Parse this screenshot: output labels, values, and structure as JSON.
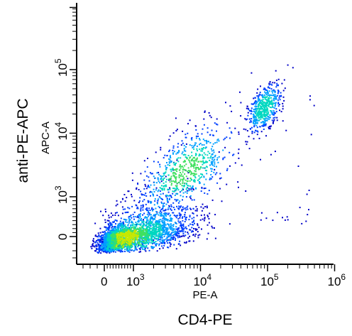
{
  "chart_data": {
    "type": "scatter",
    "style": "flow-cytometry density dot plot",
    "xlabel": "PE-A",
    "ylabel": "APC-A",
    "outer_xlabel": "CD4-PE",
    "outer_ylabel": "anti-PE-APC",
    "x_scale": "biexponential",
    "y_scale": "biexponential",
    "xlim": [
      -300,
      1000000
    ],
    "ylim": [
      -300,
      1000000
    ],
    "x_ticks": [
      {
        "value": 0,
        "base": "0",
        "exp": ""
      },
      {
        "value": 1000,
        "base": "10",
        "exp": "3"
      },
      {
        "value": 10000,
        "base": "10",
        "exp": "4"
      },
      {
        "value": 100000,
        "base": "10",
        "exp": "5"
      },
      {
        "value": 1000000,
        "base": "10",
        "exp": "6"
      }
    ],
    "y_ticks": [
      {
        "value": 0,
        "base": "0",
        "exp": ""
      },
      {
        "value": 1000,
        "base": "10",
        "exp": "3"
      },
      {
        "value": 10000,
        "base": "10",
        "exp": "4"
      },
      {
        "value": 100000,
        "base": "10",
        "exp": "5"
      }
    ],
    "populations": [
      {
        "name": "",
        "center_x": 900,
        "center_y": 150,
        "spread_x_decades": 0.45,
        "spread_y_decades": 0.45,
        "fraction": 0.72
      },
      {
        "name": "",
        "center_x": 6000,
        "center_y": 2500,
        "spread_x_decades": 0.35,
        "spread_y_decades": 0.35,
        "fraction": 0.16
      },
      {
        "name": "",
        "center_x": 90000,
        "center_y": 25000,
        "spread_x_decades": 0.12,
        "spread_y_decades": 0.18,
        "fraction": 0.12
      }
    ],
    "density_colors": [
      "#0000c8",
      "#0040ff",
      "#00a0ff",
      "#00d8c0",
      "#40e060",
      "#c8e800"
    ],
    "grid": false,
    "legend": "none"
  }
}
